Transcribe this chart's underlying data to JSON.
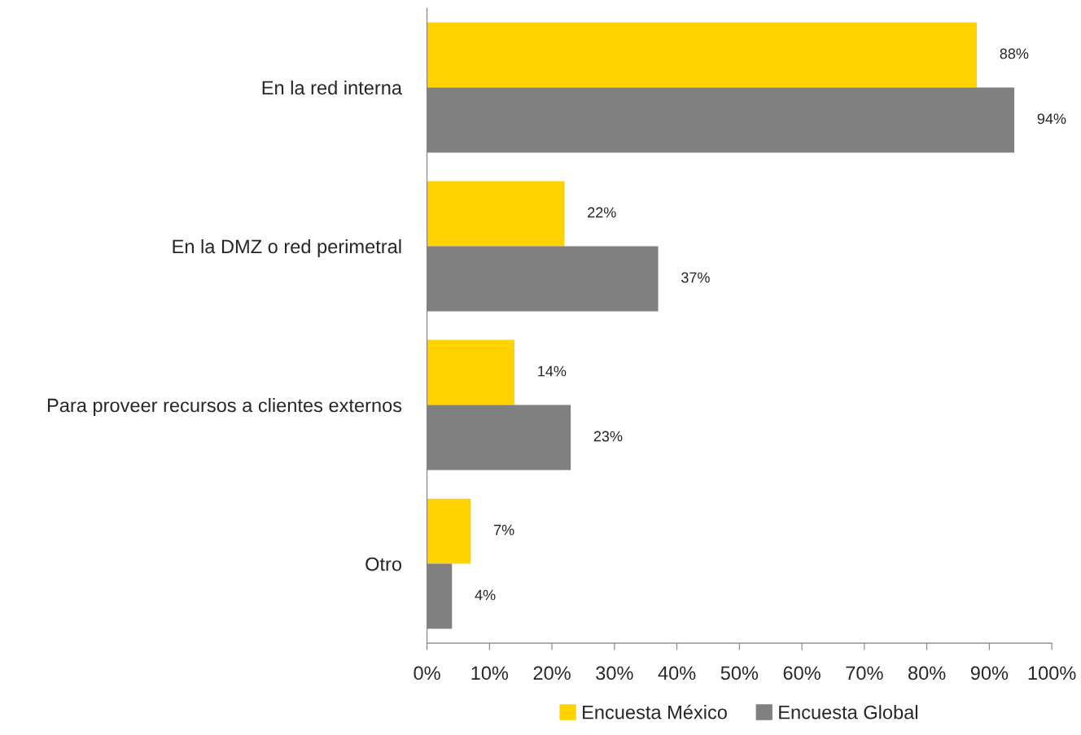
{
  "chart_data": {
    "type": "bar",
    "orientation": "horizontal",
    "categories": [
      "En la red interna",
      "En la DMZ o red perimetral",
      "Para proveer recursos a clientes externos",
      "Otro"
    ],
    "series": [
      {
        "name": "Encuesta México",
        "color": "#ffd200",
        "values": [
          88,
          22,
          14,
          7
        ],
        "value_labels": [
          "88%",
          "22%",
          "14%",
          "7%"
        ]
      },
      {
        "name": "Encuesta Global",
        "color": "#808080",
        "values": [
          94,
          37,
          23,
          4
        ],
        "value_labels": [
          "94%",
          "37%",
          "23%",
          "4%"
        ]
      }
    ],
    "xlim": [
      0,
      100
    ],
    "xticks": [
      {
        "value": 0,
        "label": "0%"
      },
      {
        "value": 10,
        "label": "10%"
      },
      {
        "value": 20,
        "label": "20%"
      },
      {
        "value": 30,
        "label": "30%"
      },
      {
        "value": 40,
        "label": "40%"
      },
      {
        "value": 50,
        "label": "50%"
      },
      {
        "value": 60,
        "label": "60%"
      },
      {
        "value": 70,
        "label": "70%"
      },
      {
        "value": 80,
        "label": "80%"
      },
      {
        "value": 90,
        "label": "90%"
      },
      {
        "value": 100,
        "label": "100%"
      }
    ],
    "grid": false,
    "legend": "bottom"
  }
}
